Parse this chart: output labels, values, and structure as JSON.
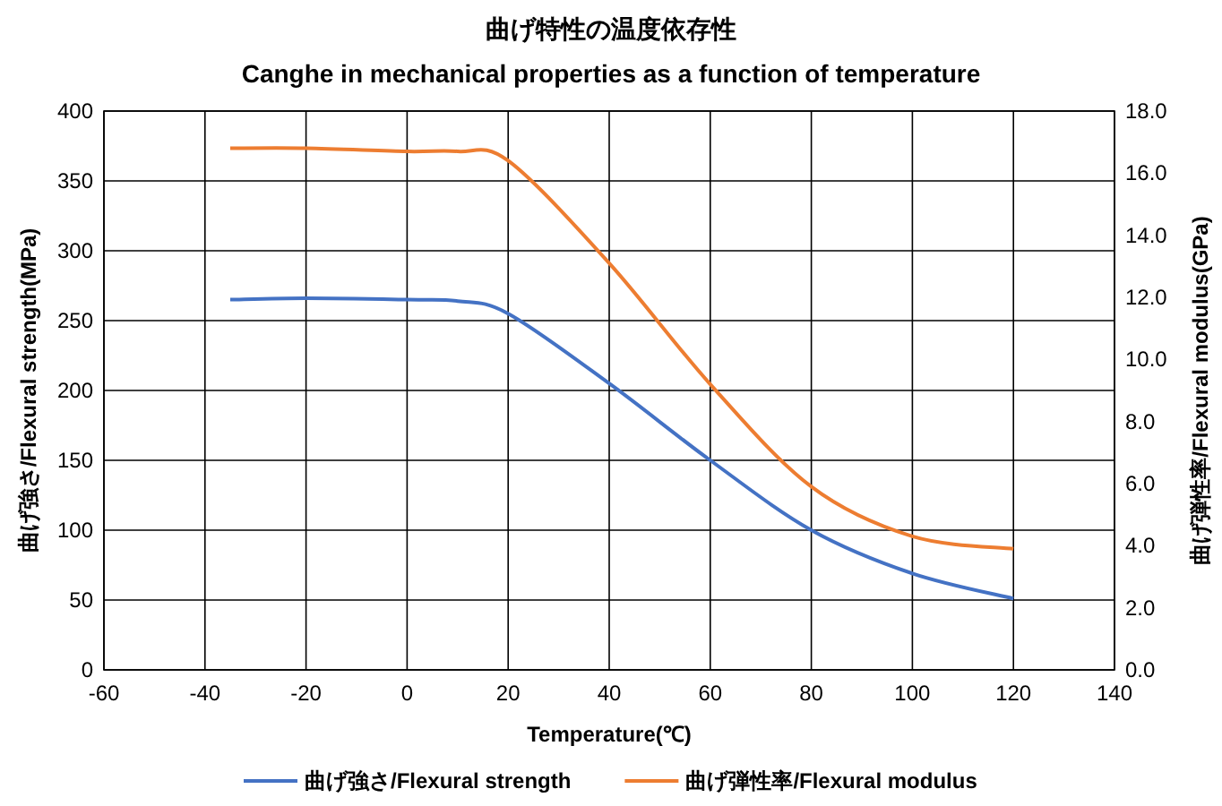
{
  "chart_data": {
    "type": "line",
    "title": "曲げ特性の温度依存性",
    "subtitle": "Canghe in mechanical properties as a function of temperature",
    "xlabel": "Temperature(℃)",
    "ylabel": "曲げ強さ/Flexural strength(MPa)",
    "y2label": "曲げ弾性率/Flexural modulus(GPa)",
    "xlim": [
      -60,
      140
    ],
    "xticks": [
      -60,
      -40,
      -20,
      0,
      20,
      40,
      60,
      80,
      100,
      120,
      140
    ],
    "ylim": [
      0,
      400
    ],
    "yticks": [
      0,
      50,
      100,
      150,
      200,
      250,
      300,
      350,
      400
    ],
    "y2lim": [
      0,
      18
    ],
    "y2ticks": [
      {
        "value": 0,
        "label": "0.0"
      },
      {
        "value": 2,
        "label": "2.0"
      },
      {
        "value": 4,
        "label": "4.0"
      },
      {
        "value": 6,
        "label": "6.0"
      },
      {
        "value": 8,
        "label": "8.0"
      },
      {
        "value": 10,
        "label": "10.0"
      },
      {
        "value": 12,
        "label": "12.0"
      },
      {
        "value": 14,
        "label": "14.0"
      },
      {
        "value": 16,
        "label": "16.0"
      },
      {
        "value": 18,
        "label": "18.0"
      }
    ],
    "grid": true,
    "legend": "bottom",
    "series": [
      {
        "name": "曲げ強さ/Flexural strength",
        "color": "#4472c4",
        "x": [
          -35,
          -20,
          0,
          10,
          20,
          40,
          60,
          80,
          100,
          120
        ],
        "values": [
          265,
          266,
          265,
          264,
          255,
          205,
          150,
          100,
          69,
          51
        ]
      },
      {
        "name": "曲げ弾性率/Flexural modulus",
        "color": "#ed7d31",
        "axis": "y2",
        "x": [
          -35,
          -20,
          0,
          10,
          20,
          40,
          60,
          80,
          100,
          120
        ],
        "values": [
          16.8,
          16.8,
          16.7,
          16.7,
          16.4,
          13.1,
          9.2,
          5.9,
          4.3,
          3.9
        ]
      }
    ]
  }
}
